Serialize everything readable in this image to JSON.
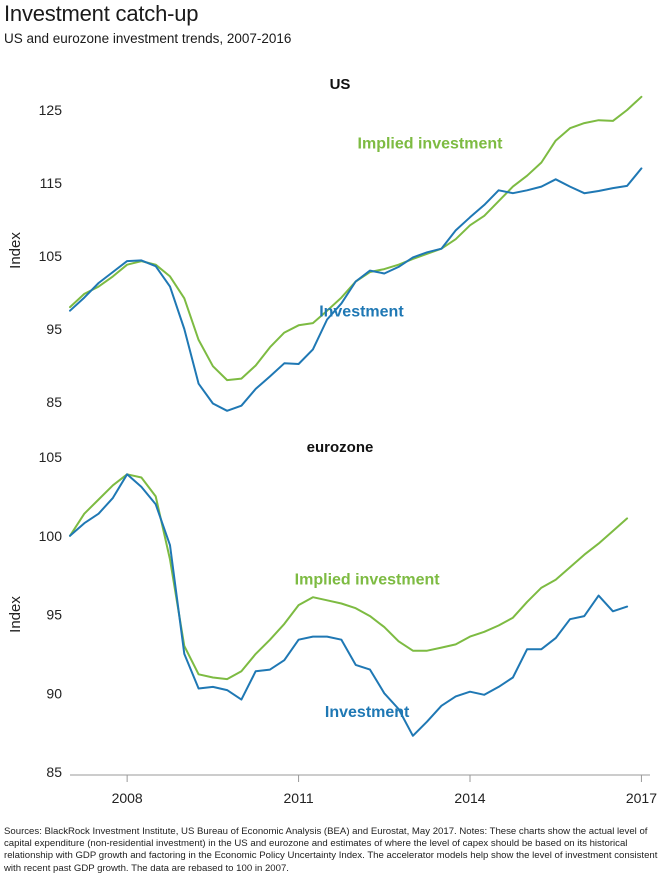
{
  "title": "Investment catch-up",
  "subtitle": "US and eurozone investment trends, 2007-2016",
  "footer": "Sources: BlackRock Investment Institute, US Bureau of Economic Analysis (BEA) and Eurostat, May 2017. Notes: These charts show the actual level of capital expenditure (non-residential investment) in the US and eurozone and estimates of where the level of capex should be based on its historical relationship with GDP growth and factoring in the Economic Policy Uncertainty Index. The accelerator models help show  the level of investment consistent with recent past GDP growth. The data are rebased to 100 in 2007.",
  "colors": {
    "implied": "#7dbb42",
    "investment": "#1f78b4",
    "axis": "#999999",
    "text": "#222222"
  },
  "x_axis": {
    "range": [
      2007,
      2017.15
    ],
    "ticks": [
      2008,
      2011,
      2014,
      2017
    ],
    "tick_labels": [
      "2008",
      "2011",
      "2014",
      "2017"
    ]
  },
  "chart_data": [
    {
      "type": "line",
      "title": "US",
      "ylabel": "Index",
      "ylim": [
        85,
        126.5
      ],
      "yticks": [
        85,
        95,
        105,
        115,
        125
      ],
      "series": [
        {
          "name": "Implied investment",
          "color_key": "implied",
          "x": [
            2007.0,
            2007.25,
            2007.5,
            2007.75,
            2008.0,
            2008.25,
            2008.5,
            2008.75,
            2009.0,
            2009.25,
            2009.5,
            2009.75,
            2010.0,
            2010.25,
            2010.5,
            2010.75,
            2011.0,
            2011.25,
            2011.5,
            2011.75,
            2012.0,
            2012.25,
            2012.5,
            2012.75,
            2013.0,
            2013.25,
            2013.5,
            2013.75,
            2014.0,
            2014.25,
            2014.5,
            2014.75,
            2015.0,
            2015.25,
            2015.5,
            2015.75,
            2016.0,
            2016.25,
            2016.5,
            2016.75,
            2017.0
          ],
          "values": [
            98.0,
            99.8,
            100.8,
            102.2,
            103.8,
            104.3,
            103.8,
            102.2,
            99.2,
            93.5,
            89.9,
            88.0,
            88.2,
            90.0,
            92.5,
            94.5,
            95.5,
            95.8,
            97.5,
            99.3,
            101.5,
            102.8,
            103.2,
            103.8,
            104.6,
            105.3,
            106.0,
            107.3,
            109.2,
            110.5,
            112.5,
            114.5,
            116.0,
            117.8,
            120.8,
            122.5,
            123.2,
            123.6,
            123.5,
            125.0,
            126.8
          ]
        },
        {
          "name": "Investment",
          "color_key": "investment",
          "x": [
            2007.0,
            2007.25,
            2007.5,
            2007.75,
            2008.0,
            2008.25,
            2008.5,
            2008.75,
            2009.0,
            2009.25,
            2009.5,
            2009.75,
            2010.0,
            2010.25,
            2010.5,
            2010.75,
            2011.0,
            2011.25,
            2011.5,
            2011.75,
            2012.0,
            2012.25,
            2012.5,
            2012.75,
            2013.0,
            2013.25,
            2013.5,
            2013.75,
            2014.0,
            2014.25,
            2014.5,
            2014.75,
            2015.0,
            2015.25,
            2015.5,
            2015.75,
            2016.0,
            2016.25,
            2016.5,
            2016.75,
            2017.0
          ],
          "values": [
            97.5,
            99.3,
            101.3,
            102.8,
            104.3,
            104.4,
            103.6,
            100.8,
            95.0,
            87.5,
            84.8,
            83.8,
            84.5,
            86.8,
            88.5,
            90.3,
            90.2,
            92.2,
            96.3,
            98.5,
            101.5,
            103.0,
            102.6,
            103.5,
            104.8,
            105.5,
            106.0,
            108.5,
            110.3,
            112.0,
            114.0,
            113.6,
            114.0,
            114.5,
            115.5,
            114.5,
            113.6,
            113.9,
            114.3,
            114.6,
            117.0
          ]
        }
      ],
      "annotations": [
        {
          "text": "Implied investment",
          "series": "Implied investment",
          "x": 2013.3,
          "y": 119.7
        },
        {
          "text": "Investment",
          "series": "Investment",
          "x": 2012.1,
          "y": 96.7
        }
      ]
    },
    {
      "type": "line",
      "title": "eurozone",
      "ylabel": "Index",
      "ylim": [
        85,
        105
      ],
      "yticks": [
        85,
        90,
        95,
        100,
        105
      ],
      "series": [
        {
          "name": "Implied investment",
          "color_key": "implied",
          "x": [
            2007.0,
            2007.25,
            2007.5,
            2007.75,
            2008.0,
            2008.25,
            2008.5,
            2008.75,
            2009.0,
            2009.25,
            2009.5,
            2009.75,
            2010.0,
            2010.25,
            2010.5,
            2010.75,
            2011.0,
            2011.25,
            2011.5,
            2011.75,
            2012.0,
            2012.25,
            2012.5,
            2012.75,
            2013.0,
            2013.25,
            2013.5,
            2013.75,
            2014.0,
            2014.25,
            2014.5,
            2014.75,
            2015.0,
            2015.25,
            2015.5,
            2015.75,
            2016.0,
            2016.25,
            2016.5,
            2016.75
          ],
          "values": [
            100.0,
            101.4,
            102.3,
            103.2,
            103.9,
            103.7,
            102.5,
            98.5,
            93.0,
            91.2,
            91.0,
            90.9,
            91.4,
            92.5,
            93.4,
            94.4,
            95.6,
            96.1,
            95.9,
            95.7,
            95.4,
            94.9,
            94.2,
            93.3,
            92.7,
            92.7,
            92.9,
            93.1,
            93.6,
            93.9,
            94.3,
            94.8,
            95.8,
            96.7,
            97.2,
            98.0,
            98.8,
            99.5,
            100.3,
            101.1
          ]
        },
        {
          "name": "Investment",
          "color_key": "investment",
          "x": [
            2007.0,
            2007.25,
            2007.5,
            2007.75,
            2008.0,
            2008.25,
            2008.5,
            2008.75,
            2009.0,
            2009.25,
            2009.5,
            2009.75,
            2010.0,
            2010.25,
            2010.5,
            2010.75,
            2011.0,
            2011.25,
            2011.5,
            2011.75,
            2012.0,
            2012.25,
            2012.5,
            2012.75,
            2013.0,
            2013.25,
            2013.5,
            2013.75,
            2014.0,
            2014.25,
            2014.5,
            2014.75,
            2015.0,
            2015.25,
            2015.5,
            2015.75,
            2016.0,
            2016.25,
            2016.5,
            2016.75
          ],
          "values": [
            100.0,
            100.8,
            101.4,
            102.4,
            103.9,
            103.1,
            102.0,
            99.4,
            92.5,
            90.3,
            90.4,
            90.2,
            89.6,
            91.4,
            91.5,
            92.1,
            93.4,
            93.6,
            93.6,
            93.4,
            91.8,
            91.5,
            90.0,
            89.0,
            87.3,
            88.2,
            89.2,
            89.8,
            90.1,
            89.9,
            90.4,
            91.0,
            92.8,
            92.8,
            93.5,
            94.7,
            94.9,
            96.2,
            95.2,
            95.5
          ]
        }
      ],
      "annotations": [
        {
          "text": "Implied investment",
          "series": "Implied investment",
          "x": 2012.2,
          "y": 96.9
        },
        {
          "text": "Investment",
          "series": "Investment",
          "x": 2012.2,
          "y": 88.5
        }
      ]
    }
  ]
}
